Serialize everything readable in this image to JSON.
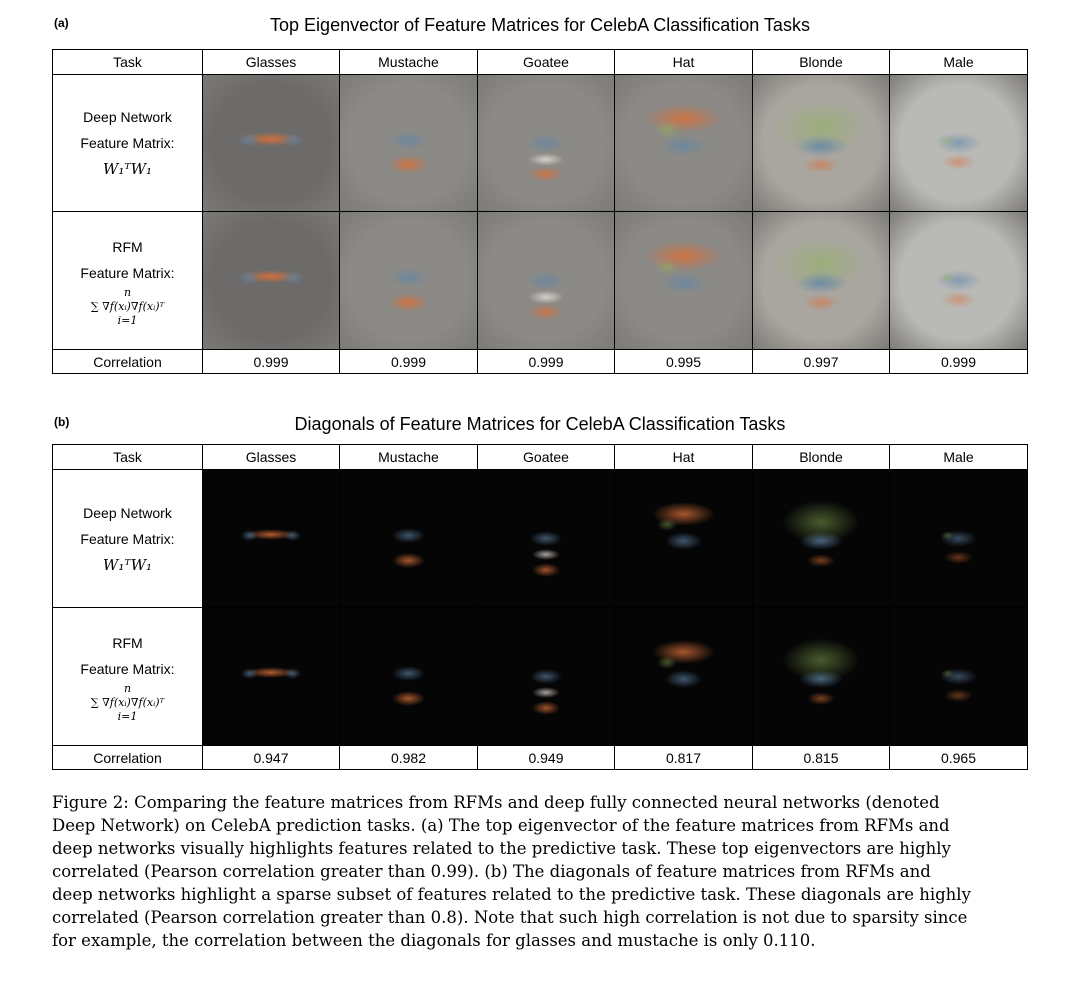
{
  "panel_a": {
    "label": "(a)",
    "title": "Top Eigenvector of Feature Matrices for CelebA Classification Tasks",
    "header_task": "Task",
    "columns": [
      "Glasses",
      "Mustache",
      "Goatee",
      "Hat",
      "Blonde",
      "Male"
    ],
    "row1_label_line1": "Deep Network",
    "row1_label_line2": "Feature Matrix:",
    "row1_formula": "W₁ᵀW₁",
    "row2_label_line1": "RFM",
    "row2_label_line2": "Feature Matrix:",
    "row2_formula": "∑ ∇f(xᵢ)∇f(xᵢ)ᵀ",
    "row2_formula_upper": "n",
    "row2_formula_lower": "i=1",
    "correlation_label": "Correlation",
    "correlations": [
      "0.999",
      "0.999",
      "0.999",
      "0.995",
      "0.997",
      "0.999"
    ],
    "image_style": "gray-background eigenvector maps"
  },
  "panel_b": {
    "label": "(b)",
    "title": "Diagonals of Feature Matrices for CelebA Classification Tasks",
    "header_task": "Task",
    "columns": [
      "Glasses",
      "Mustache",
      "Goatee",
      "Hat",
      "Blonde",
      "Male"
    ],
    "row1_label_line1": "Deep Network",
    "row1_label_line2": "Feature Matrix:",
    "row1_formula": "W₁ᵀW₁",
    "row2_label_line1": "RFM",
    "row2_label_line2": "Feature Matrix:",
    "row2_formula": "∑ ∇f(xᵢ)∇f(xᵢ)ᵀ",
    "row2_formula_upper": "n",
    "row2_formula_lower": "i=1",
    "correlation_label": "Correlation",
    "correlations": [
      "0.947",
      "0.982",
      "0.949",
      "0.817",
      "0.815",
      "0.965"
    ],
    "image_style": "black-background diagonal maps"
  },
  "caption": {
    "lines": [
      "Figure 2: Comparing the feature matrices from RFMs and deep fully connected neural networks (denoted",
      "Deep Network) on CelebA prediction tasks. (a) The top eigenvector of the feature matrices from RFMs and",
      "deep networks visually highlights features related to the predictive task. These top eigenvectors are highly",
      "correlated (Pearson correlation greater than 0.99). (b) The diagonals of feature matrices from RFMs and",
      "deep networks highlight a sparse subset of features related to the predictive task. These diagonals are highly",
      "correlated (Pearson correlation greater than 0.8). Note that such high correlation is not due to sparsity since",
      "for example, the correlation between the diagonals for glasses and mustache is only 0.110."
    ]
  },
  "colors": {
    "orange_feature": "#d9703a",
    "blue_feature": "#5f86a8",
    "green_feature": "#8fb35a",
    "gray_bg": "#8a8a8a",
    "black_bg": "#050505"
  }
}
